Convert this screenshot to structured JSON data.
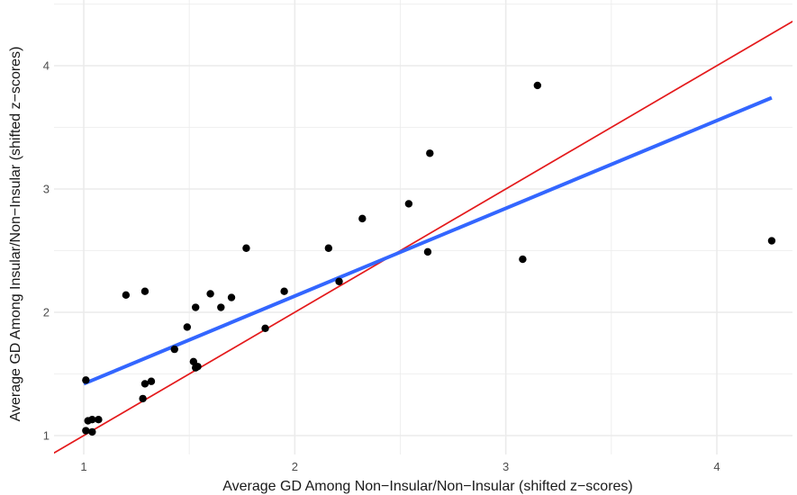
{
  "chart_data": {
    "type": "scatter",
    "title": "",
    "xlabel": "Average GD Among Non−Insular/Non−Insular (shifted z−scores)",
    "ylabel": "Average GD Among Insular/Non−Insular (shifted z−scores)",
    "xlim": [
      0.85,
      4.4
    ],
    "ylim": [
      0.85,
      4.4
    ],
    "xticks": [
      1,
      2,
      3,
      4
    ],
    "yticks": [
      1,
      2,
      3,
      4
    ],
    "xtick_labels": [
      "1",
      "2",
      "3",
      "4"
    ],
    "ytick_labels": [
      "1",
      "2",
      "3",
      "4"
    ],
    "grid": true,
    "legend": "none",
    "points": [
      {
        "x": 1.01,
        "y": 1.45
      },
      {
        "x": 1.01,
        "y": 1.04
      },
      {
        "x": 1.02,
        "y": 1.12
      },
      {
        "x": 1.04,
        "y": 1.13
      },
      {
        "x": 1.04,
        "y": 1.03
      },
      {
        "x": 1.07,
        "y": 1.13
      },
      {
        "x": 1.2,
        "y": 2.14
      },
      {
        "x": 1.28,
        "y": 1.3
      },
      {
        "x": 1.29,
        "y": 1.42
      },
      {
        "x": 1.29,
        "y": 2.17
      },
      {
        "x": 1.32,
        "y": 1.44
      },
      {
        "x": 1.43,
        "y": 1.7
      },
      {
        "x": 1.49,
        "y": 1.88
      },
      {
        "x": 1.52,
        "y": 1.6
      },
      {
        "x": 1.53,
        "y": 2.04
      },
      {
        "x": 1.53,
        "y": 1.55
      },
      {
        "x": 1.54,
        "y": 1.56
      },
      {
        "x": 1.6,
        "y": 2.15
      },
      {
        "x": 1.65,
        "y": 2.04
      },
      {
        "x": 1.7,
        "y": 2.12
      },
      {
        "x": 1.77,
        "y": 2.52
      },
      {
        "x": 1.86,
        "y": 1.87
      },
      {
        "x": 1.95,
        "y": 2.17
      },
      {
        "x": 2.16,
        "y": 2.52
      },
      {
        "x": 2.21,
        "y": 2.25
      },
      {
        "x": 2.32,
        "y": 2.76
      },
      {
        "x": 2.54,
        "y": 2.88
      },
      {
        "x": 2.63,
        "y": 2.49
      },
      {
        "x": 2.64,
        "y": 3.29
      },
      {
        "x": 3.08,
        "y": 2.43
      },
      {
        "x": 3.15,
        "y": 3.84
      },
      {
        "x": 4.26,
        "y": 2.58
      }
    ],
    "lines": [
      {
        "kind": "identity",
        "color": "#e41a1c",
        "x": [
          0.85,
          4.4
        ],
        "y": [
          0.85,
          4.4
        ]
      },
      {
        "kind": "linear-fit",
        "color": "#3366ff",
        "x": [
          1.0,
          4.26
        ],
        "y": [
          1.42,
          3.74
        ]
      }
    ],
    "point_color": "#000000",
    "grid_color": "#ebebeb"
  }
}
